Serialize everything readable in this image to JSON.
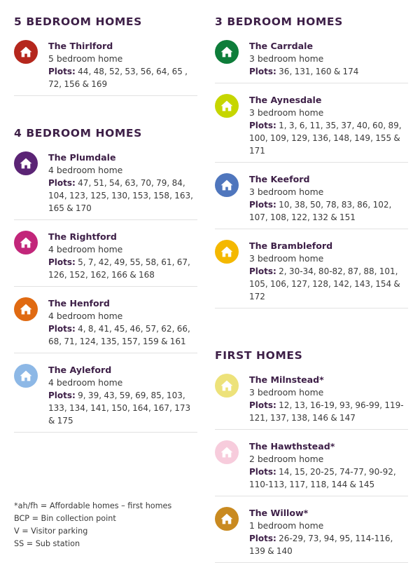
{
  "left": {
    "sections": [
      {
        "heading": "5 BEDROOM HOMES",
        "homes": [
          {
            "name": "The Thirlford",
            "desc": "5 bedroom home",
            "plots_label": "Plots:",
            "plots": "44, 48, 52, 53, 56, 64, 65 , 72, 156 & 169",
            "color": "#b5271d",
            "icon": "house-icon"
          }
        ]
      },
      {
        "heading": "4 BEDROOM HOMES",
        "homes": [
          {
            "name": "The Plumdale",
            "desc": "4 bedroom home",
            "plots_label": "Plots:",
            "plots": "47, 51, 54, 63, 70, 79, 84, 104, 123, 125, 130, 153, 158, 163, 165 & 170",
            "color": "#5b2475",
            "icon": "house-icon"
          },
          {
            "name": "The Rightford",
            "desc": "4 bedroom home",
            "plots_label": "Plots:",
            "plots": "5, 7, 42, 49, 55, 58, 61, 67, 126, 152, 162, 166 & 168",
            "color": "#c2267a",
            "icon": "house-icon"
          },
          {
            "name": "The Henford",
            "desc": "4 bedroom home",
            "plots_label": "Plots:",
            "plots": "4, 8, 41, 45, 46, 57, 62, 66, 68, 71, 124, 135, 157, 159 & 161",
            "color": "#e06a12",
            "icon": "house-icon"
          },
          {
            "name": "The Ayleford",
            "desc": "4 bedroom home",
            "plots_label": "Plots:",
            "plots": "9, 39, 43, 59, 69, 85, 103, 133, 134, 141, 150, 164, 167, 173 & 175",
            "color": "#8db8e6",
            "icon": "house-icon"
          }
        ]
      }
    ],
    "notes": [
      "*ah/fh = Affordable homes – first homes",
      "BCP = Bin collection point",
      "V = Visitor parking",
      "SS = Sub station"
    ]
  },
  "right": {
    "sections": [
      {
        "heading": "3 BEDROOM HOMES",
        "homes": [
          {
            "name": "The Carrdale",
            "desc": "3 bedroom home",
            "plots_label": "Plots:",
            "plots": "36, 131, 160 & 174",
            "color": "#0e7d3a",
            "icon": "house-icon"
          },
          {
            "name": "The Aynesdale",
            "desc": "3 bedroom home",
            "plots_label": "Plots:",
            "plots": "1, 3, 6, 11, 35, 37, 40, 60, 89, 100, 109, 129, 136, 148, 149, 155 & 171",
            "color": "#c6d600",
            "icon": "house-icon"
          },
          {
            "name": "The Keeford",
            "desc": "3 bedroom home",
            "plots_label": "Plots:",
            "plots": "10, 38, 50, 78, 83, 86, 102, 107, 108, 122, 132 & 151",
            "color": "#4f76bd",
            "icon": "house-icon"
          },
          {
            "name": "The Brambleford",
            "desc": "3 bedroom home",
            "plots_label": "Plots:",
            "plots": "2, 30-34, 80-82, 87, 88, 101, 105, 106, 127, 128, 142, 143, 154 & 172",
            "color": "#f4b800",
            "icon": "house-icon"
          }
        ]
      },
      {
        "heading": "FIRST HOMES",
        "homes": [
          {
            "name": "The Milnstead*",
            "desc": "3 bedroom home",
            "plots_label": "Plots:",
            "plots": "12, 13, 16-19, 93, 96-99, 119-121, 137, 138, 146 & 147",
            "color": "#ede27a",
            "icon": "house-icon"
          },
          {
            "name": "The Hawthstead*",
            "desc": "2 bedroom home",
            "plots_label": "Plots:",
            "plots": "14, 15, 20-25, 74-77, 90-92, 110-113, 117, 118, 144 & 145",
            "color": "#f7ccdc",
            "icon": "house-icon"
          },
          {
            "name": "The Willow*",
            "desc": "1 bedroom home",
            "plots_label": "Plots:",
            "plots": "26-29, 73, 94, 95, 114-116, 139 & 140",
            "color": "#c98a20",
            "icon": "house-icon"
          }
        ]
      }
    ]
  }
}
